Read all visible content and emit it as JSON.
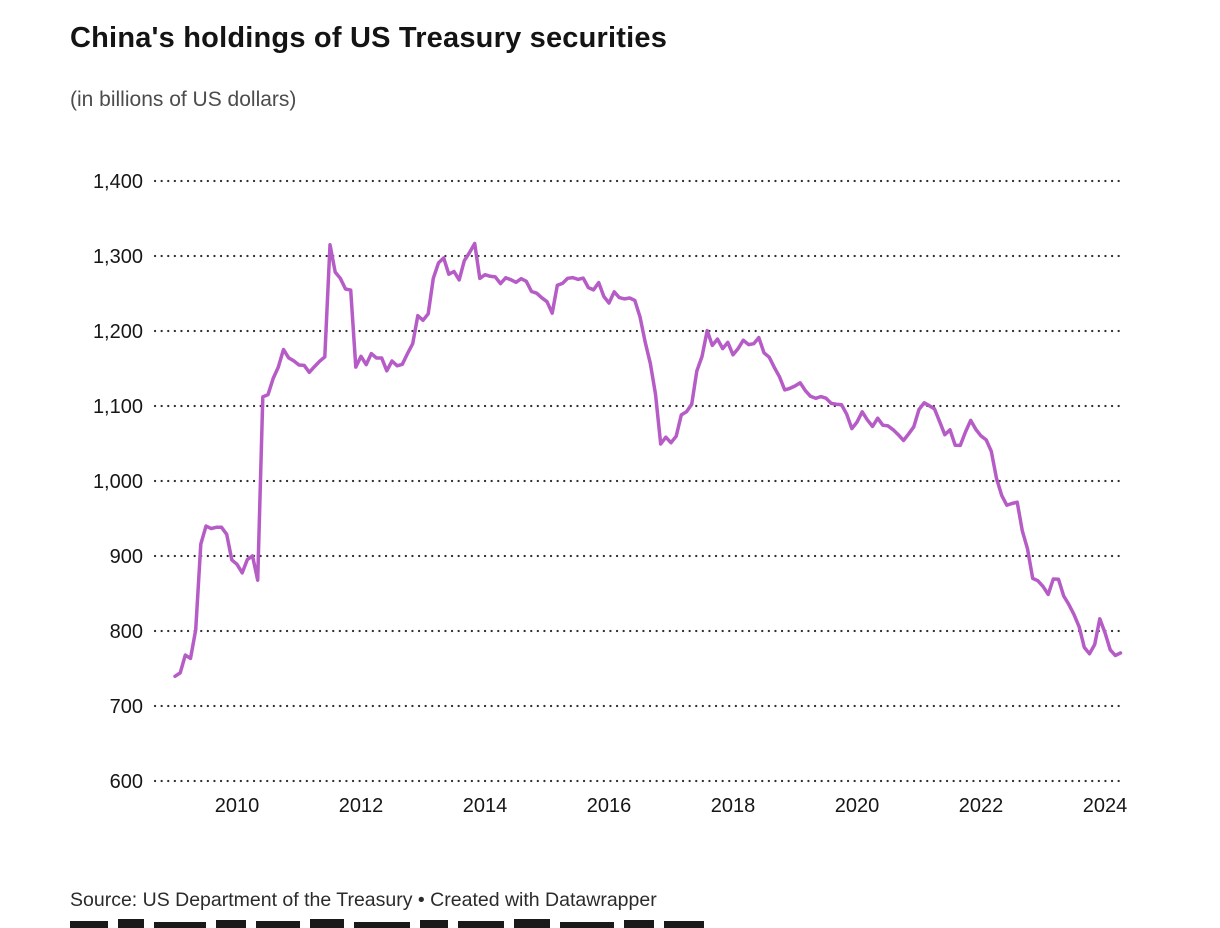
{
  "title": "China's holdings of US Treasury securities",
  "subtitle": "(in billions of US dollars)",
  "footer": {
    "source": "Source: US Department of the Treasury",
    "separator": " • ",
    "credit": "Created with Datawrapper"
  },
  "chart_data": {
    "type": "line",
    "title": "China's holdings of US Treasury securities",
    "subtitle": "(in billions of US dollars)",
    "xlabel": "",
    "ylabel": "in billions of US dollars",
    "ylim": [
      600,
      1400
    ],
    "xlim": [
      2008.9,
      2024.4
    ],
    "grid": "horizontal-dotted",
    "grid_color": "#2f2f2f",
    "line_color": "#b65cc6",
    "legend": "none",
    "y_ticks": [
      1400,
      1300,
      1200,
      1100,
      1000,
      900,
      800,
      700,
      600
    ],
    "y_tick_labels": [
      "1,400",
      "1,300",
      "1,200",
      "1,100",
      "1,000",
      "900",
      "800",
      "700",
      "600"
    ],
    "x_ticks": [
      2010,
      2012,
      2014,
      2016,
      2018,
      2020,
      2022,
      2024
    ],
    "x_tick_labels": [
      "2010",
      "2012",
      "2014",
      "2016",
      "2018",
      "2020",
      "2022",
      "2024"
    ],
    "series": [
      {
        "name": "China's holdings",
        "unit": "billions of US dollars",
        "frequency": "monthly",
        "start_year": 2009,
        "points_per_year": 12,
        "values": [
          739.6,
          744.2,
          767.9,
          763.5,
          801.5,
          915.8,
          939.9,
          936.5,
          938.3,
          938.3,
          929.0,
          894.8,
          889.0,
          877.5,
          895.2,
          900.2,
          867.7,
          1112.1,
          1115.1,
          1136.8,
          1151.9,
          1175.3,
          1164.1,
          1160.1,
          1154.7,
          1154.1,
          1144.9,
          1152.5,
          1159.8,
          1165.5,
          1314.9,
          1278.5,
          1270.3,
          1256.0,
          1254.6,
          1151.9,
          1166.2,
          1155.2,
          1169.9,
          1164.0,
          1164.0,
          1147.0,
          1160.0,
          1153.6,
          1155.6,
          1169.9,
          1183.1,
          1220.4,
          1214.2,
          1222.9,
          1270.3,
          1290.8,
          1297.3,
          1275.8,
          1279.3,
          1268.1,
          1293.8,
          1304.5,
          1316.7,
          1270.1,
          1275.1,
          1272.9,
          1272.1,
          1263.2,
          1270.9,
          1268.4,
          1264.9,
          1269.7,
          1266.3,
          1252.7,
          1250.4,
          1244.3,
          1239.1,
          1223.7,
          1261.0,
          1263.5,
          1270.3,
          1271.2,
          1268.8,
          1270.5,
          1258.0,
          1254.8,
          1264.5,
          1246.1,
          1237.3,
          1252.3,
          1244.6,
          1242.8,
          1244.0,
          1240.8,
          1218.8,
          1185.1,
          1157.0,
          1115.7,
          1049.3,
          1058.4,
          1051.1,
          1059.7,
          1088.1,
          1092.2,
          1102.2,
          1146.5,
          1166.0,
          1200.5,
          1180.8,
          1189.2,
          1176.6,
          1184.9,
          1168.2,
          1176.7,
          1187.7,
          1181.9,
          1183.1,
          1191.2,
          1171.0,
          1165.1,
          1151.4,
          1138.9,
          1121.4,
          1123.5,
          1126.7,
          1130.9,
          1120.5,
          1113.0,
          1110.2,
          1112.5,
          1110.4,
          1103.5,
          1102.4,
          1101.7,
          1089.1,
          1069.9,
          1078.6,
          1092.3,
          1081.6,
          1072.8,
          1083.7,
          1074.4,
          1073.4,
          1068.3,
          1061.7,
          1054.0,
          1063.0,
          1072.3,
          1095.4,
          1104.2,
          1100.4,
          1096.1,
          1078.9,
          1061.7,
          1068.3,
          1047.6,
          1047.5,
          1065.4,
          1080.8,
          1068.9,
          1060.1,
          1054.8,
          1039.6,
          1003.4,
          980.8,
          967.8,
          970.0,
          971.8,
          933.6,
          909.6,
          870.2,
          867.1,
          859.4,
          848.8,
          869.3,
          868.9,
          846.7,
          835.4,
          821.8,
          805.4,
          778.1,
          769.6,
          782.0,
          816.3,
          797.7,
          775.0,
          767.4,
          770.8
        ]
      }
    ]
  }
}
